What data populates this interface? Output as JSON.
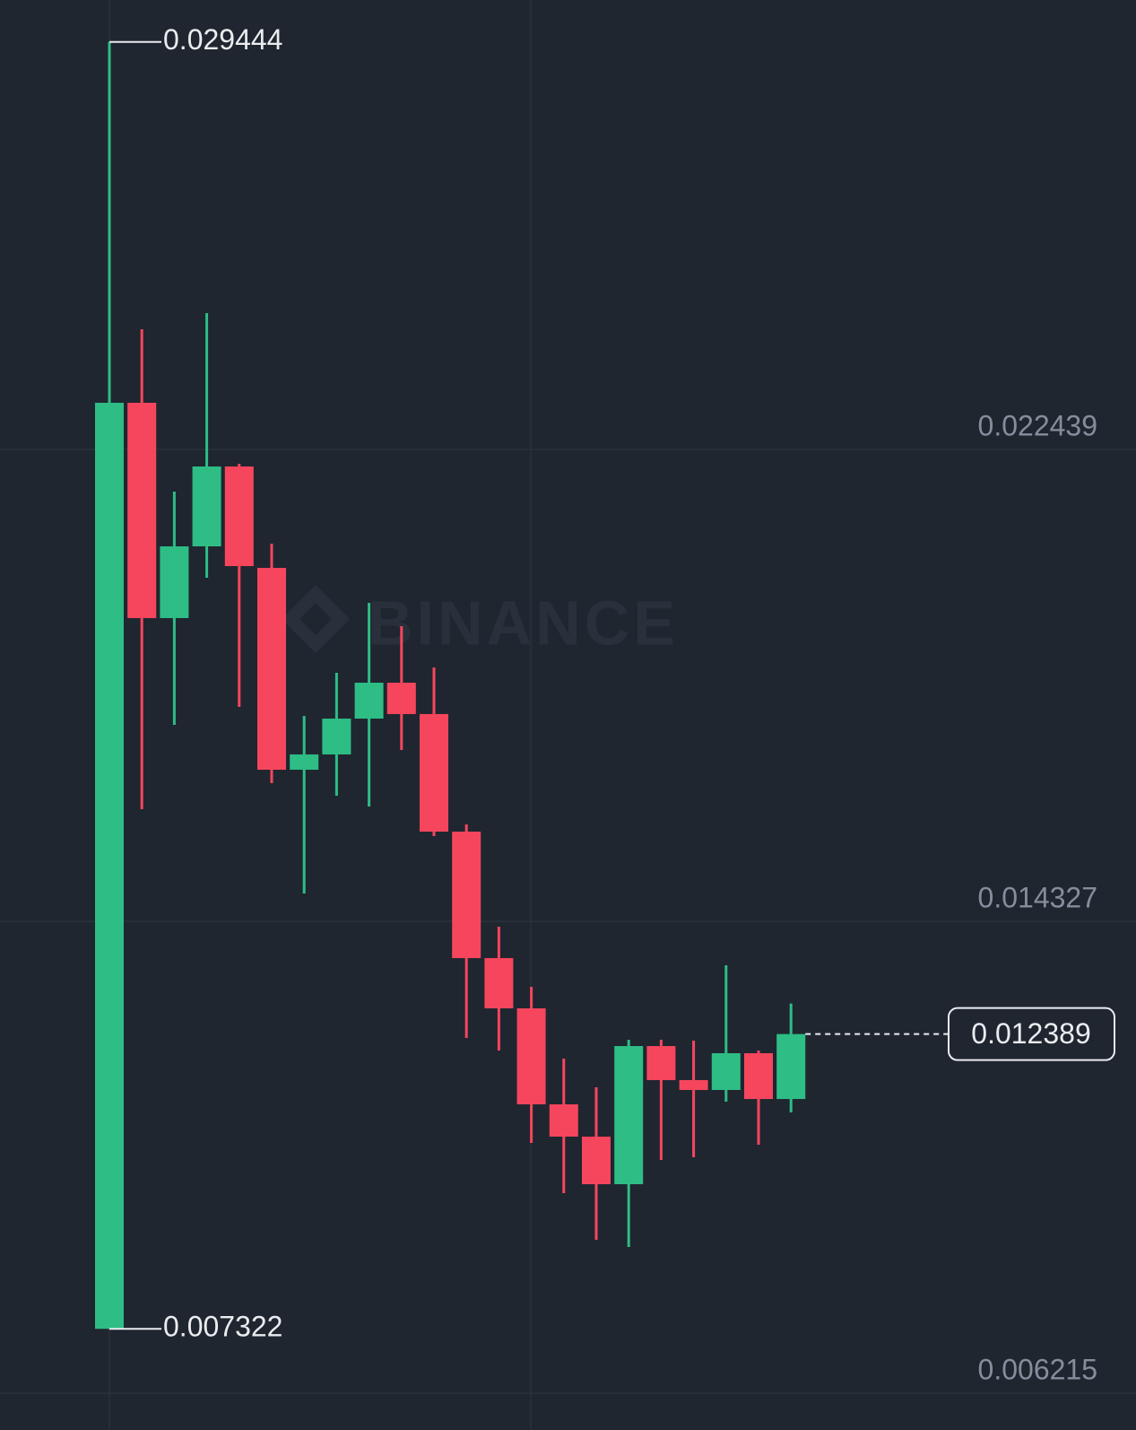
{
  "chart_data": {
    "type": "candlestick",
    "watermark": "BINANCE",
    "up_color": "#2ebd85",
    "down_color": "#f6465d",
    "open": [
      0.007322,
      0.023241,
      0.01954,
      0.020773,
      0.022146,
      0.020403,
      0.016933,
      0.017196,
      0.017812,
      0.018429,
      0.01789,
      0.015869,
      0.013695,
      0.012831,
      0.011181,
      0.010626,
      0.009808,
      0.012183,
      0.011598,
      0.011428,
      0.01206,
      0.011273
    ],
    "high": [
      0.029444,
      0.024506,
      0.021714,
      0.024783,
      0.022192,
      0.02082,
      0.017859,
      0.018599,
      0.019802,
      0.019401,
      0.018691,
      0.015993,
      0.014234,
      0.013201,
      0.011967,
      0.011474,
      0.012291,
      0.012291,
      0.012276,
      0.013571,
      0.012106,
      0.012914
    ],
    "low": [
      0.007322,
      0.016255,
      0.017704,
      0.020234,
      0.018013,
      0.016702,
      0.014805,
      0.016486,
      0.016301,
      0.017273,
      0.015792,
      0.012322,
      0.012106,
      0.010518,
      0.009654,
      0.008852,
      0.008729,
      0.010225,
      0.010271,
      0.011227,
      0.010487,
      0.011042
    ],
    "close": [
      0.023241,
      0.01954,
      0.020773,
      0.022146,
      0.020434,
      0.016933,
      0.017196,
      0.017812,
      0.018429,
      0.01789,
      0.015869,
      0.013695,
      0.012831,
      0.011181,
      0.010626,
      0.009808,
      0.012183,
      0.011598,
      0.011428,
      0.01206,
      0.011273,
      0.012389
    ],
    "ylim": [
      0.005583,
      0.030165
    ],
    "yticks": [
      0.006215,
      0.014327,
      0.022439
    ],
    "grid": true
  }
}
